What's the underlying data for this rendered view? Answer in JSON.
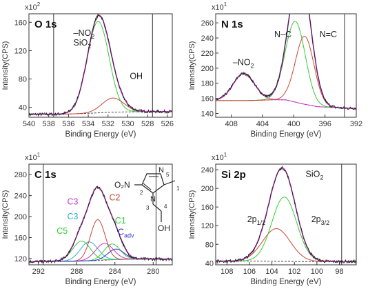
{
  "figure": {
    "colors": {
      "spectrum": "#222222",
      "envelope": "#cc33cc",
      "green": "#33cc33",
      "red": "#cc4433",
      "blue": "#3333cc",
      "cyan": "#33aacc",
      "background": "#888888",
      "c3_label": "#cc33cc",
      "c3b_label": "#33aacc",
      "c2_label": "#cc4433",
      "c1_label": "#33cc33",
      "c5_label": "#33cc33",
      "cadv_label": "#3333cc"
    }
  },
  "chart_data": [
    {
      "type": "line",
      "title": "O 1s",
      "xlabel": "Binding Energy (eV)",
      "ylabel": "Intensity(CPS)",
      "y_multiplier": "x10",
      "y_multiplier_exp": "2",
      "xlim": [
        540,
        525.5
      ],
      "ylim": [
        26,
        172
      ],
      "xticks": [
        540,
        538,
        536,
        534,
        532,
        530,
        528,
        526
      ],
      "yticks": [
        40,
        80,
        120,
        160
      ],
      "vlines": [
        537.5,
        527.5
      ],
      "background": {
        "x": [
          540,
          536,
          534,
          532,
          530,
          528,
          525.5
        ],
        "y": [
          30,
          30.5,
          31.5,
          33,
          33.5,
          34,
          34
        ]
      },
      "components": [
        {
          "label": "–NO2 SiO2",
          "color": "#33cc33",
          "center": 533.0,
          "fwhm": 2.6,
          "height": 129
        },
        {
          "label": "OH",
          "color": "#cc4433",
          "center": 531.5,
          "fwhm": 2.6,
          "height": 20
        }
      ],
      "labels": [
        {
          "text": "–NO",
          "sub": "2",
          "x": 535.5,
          "y": 141
        },
        {
          "text": "SiO",
          "sub": "2",
          "x": 535.5,
          "y": 127
        },
        {
          "text": "OH",
          "x": 529.8,
          "y": 80
        }
      ]
    },
    {
      "type": "line",
      "title": "N 1s",
      "xlabel": "Binding Energy (eV)",
      "ylabel": "Intensity(CPS)",
      "y_multiplier": "x10",
      "y_multiplier_exp": "1",
      "xlim": [
        410,
        392
      ],
      "ylim": [
        135,
        272
      ],
      "xticks": [
        408,
        404,
        400,
        396,
        392
      ],
      "yticks": [
        140,
        160,
        180,
        200,
        220,
        240,
        260
      ],
      "vlines": [
        393.5
      ],
      "background": {
        "x": [
          410,
          406,
          403,
          401,
          399,
          397,
          395,
          393.5
        ],
        "y": [
          157,
          157,
          158,
          158,
          153,
          149,
          148,
          147
        ]
      },
      "components": [
        {
          "label": "–NO2",
          "color": "#cc33cc",
          "center": 406.4,
          "fwhm": 3.2,
          "height": 36
        },
        {
          "label": "N–C",
          "color": "#33cc33",
          "center": 399.8,
          "fwhm": 3.0,
          "height": 107
        },
        {
          "label": "N=C",
          "color": "#cc4433",
          "center": 398.6,
          "fwhm": 2.8,
          "height": 90
        }
      ],
      "labels": [
        {
          "text": "–NO",
          "sub": "2",
          "x": 407.8,
          "y": 204
        },
        {
          "text": "N–C",
          "x": 402.5,
          "y": 241
        },
        {
          "text": "N=C",
          "x": 396.7,
          "y": 241
        }
      ]
    },
    {
      "type": "line",
      "title": "C 1s",
      "xlabel": "Binding Energy (eV)",
      "ylabel": "Intensity(CPS)",
      "y_multiplier": "x10",
      "y_multiplier_exp": "1",
      "xlim": [
        293,
        278
      ],
      "ylim": [
        108,
        300
      ],
      "xticks": [
        292,
        288,
        284,
        280
      ],
      "yticks": [
        120,
        160,
        200,
        240,
        280
      ],
      "vlines": [
        291.5,
        279.7
      ],
      "background": {
        "x": [
          293,
          288,
          286,
          284,
          282,
          279.7
        ],
        "y": [
          114,
          115,
          116,
          118,
          119,
          119
        ]
      },
      "components": [
        {
          "label": "C5",
          "color": "#33cc33",
          "center": 287.5,
          "fwhm": 2.2,
          "height": 38
        },
        {
          "label": "C3",
          "color": "#33aacc",
          "center": 286.7,
          "fwhm": 2.2,
          "height": 36
        },
        {
          "label": "C2",
          "color": "#cc4433",
          "center": 285.8,
          "fwhm": 1.8,
          "height": 78
        },
        {
          "label": "C3",
          "color": "#cc33cc",
          "center": 285.1,
          "fwhm": 2.2,
          "height": 32
        },
        {
          "label": "C1",
          "color": "#33cc33",
          "center": 284.3,
          "fwhm": 2.0,
          "height": 30
        },
        {
          "label": "Cadv",
          "color": "#3333cc",
          "center": 283.9,
          "fwhm": 2.0,
          "height": 20
        }
      ],
      "labels": [
        {
          "text": "C3",
          "x": 289.0,
          "y": 223,
          "color": "#cc33cc"
        },
        {
          "text": "C3",
          "x": 289.0,
          "y": 195,
          "color": "#33aacc"
        },
        {
          "text": "C5",
          "x": 290.1,
          "y": 167,
          "color": "#33cc33"
        },
        {
          "text": "C2",
          "x": 284.6,
          "y": 231,
          "color": "#cc4433"
        },
        {
          "text": "C1",
          "x": 284.0,
          "y": 187,
          "color": "#33cc33"
        },
        {
          "text": "C",
          "sub": "adv",
          "x": 283.7,
          "y": 165,
          "color": "#3333cc"
        }
      ],
      "molecule_labels": {
        "nitro": "O₂N",
        "ring_n": "N",
        "oh": "OH",
        "atom_nums": [
          "1",
          "2",
          "3",
          "4",
          "5"
        ]
      }
    },
    {
      "type": "line",
      "title": "Si 2p",
      "xlabel": "Binding Energy (eV)",
      "ylabel": "Intensity(CPS)",
      "y_multiplier": "x10",
      "y_multiplier_exp": "1",
      "xlim": [
        109,
        96.5
      ],
      "ylim": [
        36,
        252
      ],
      "xticks": [
        108,
        106,
        104,
        102,
        100,
        98
      ],
      "yticks": [
        40,
        80,
        120,
        160,
        200,
        240
      ],
      "vlines": [
        97.8
      ],
      "background": {
        "x": [
          109,
          105,
          103,
          101,
          97.8
        ],
        "y": [
          44,
          44,
          43.5,
          43,
          43
        ]
      },
      "components": [
        {
          "label": "2p1/2",
          "color": "#cc4433",
          "center": 103.6,
          "fwhm": 2.9,
          "height": 70
        },
        {
          "label": "2p3/2",
          "color": "#33cc33",
          "center": 102.9,
          "fwhm": 2.6,
          "height": 138
        }
      ],
      "labels": [
        {
          "text": "SiO",
          "sub": "2",
          "x": 101.0,
          "y": 225
        },
        {
          "text": "2p",
          "sub": "1/2",
          "x": 106.2,
          "y": 128
        },
        {
          "text": "2p",
          "sub": "3/2",
          "x": 100.5,
          "y": 128
        }
      ]
    }
  ]
}
